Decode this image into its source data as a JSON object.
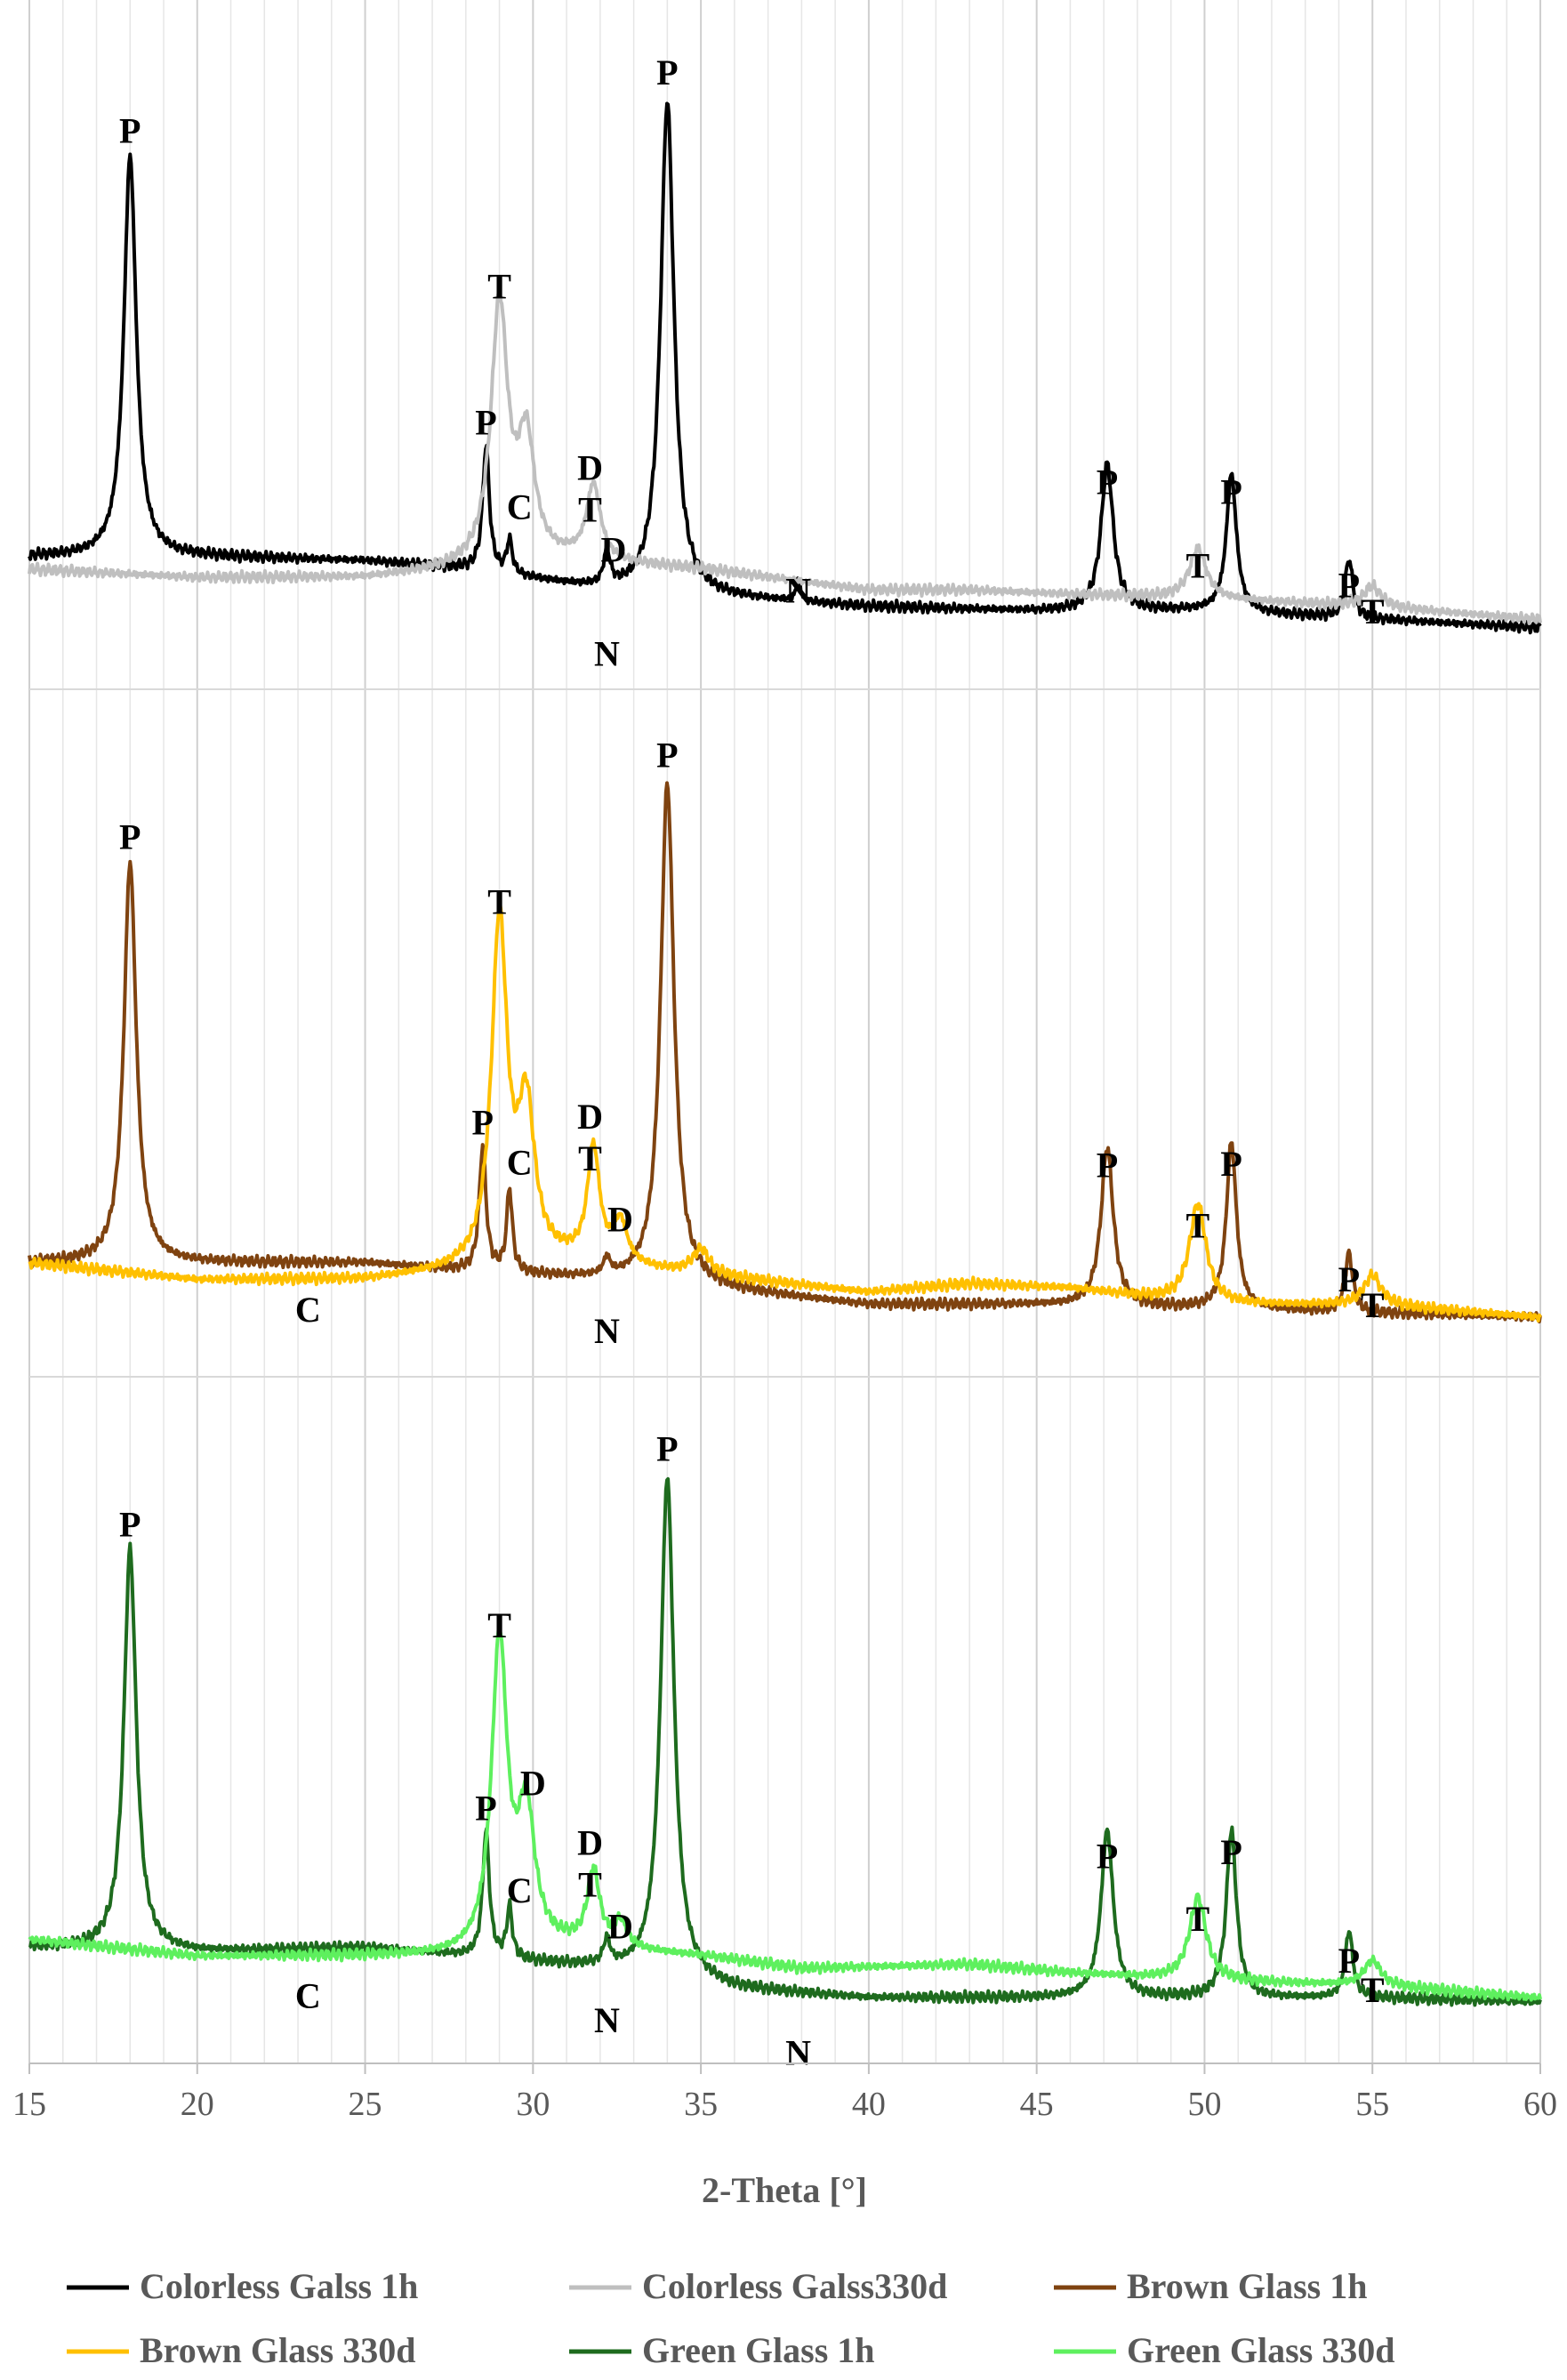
{
  "chart_data": {
    "type": "line",
    "title": "",
    "xlabel": "2-Theta [°]",
    "ylabel": "",
    "xlim": [
      15,
      60
    ],
    "x_ticks": [
      15,
      20,
      25,
      30,
      35,
      40,
      45,
      50,
      55,
      60
    ],
    "grid": "vertical",
    "legend": "bottom",
    "panels": [
      {
        "name": "colorless",
        "series": [
          {
            "name": "Colorless Galss 1h",
            "color": "#000000",
            "baseline": [
              [
                15,
                0.03
              ],
              [
                20,
                0.03
              ],
              [
                25,
                0.02
              ],
              [
                28,
                0.0
              ],
              [
                32,
                -0.05
              ],
              [
                36,
                -0.07
              ],
              [
                40,
                -0.09
              ],
              [
                45,
                -0.1
              ],
              [
                50,
                -0.1
              ],
              [
                55,
                -0.12
              ],
              [
                60,
                -0.14
              ]
            ],
            "peaks": [
              {
                "x": 18.0,
                "h": 0.96,
                "w": 0.22
              },
              {
                "x": 28.6,
                "h": 0.3,
                "w": 0.12
              },
              {
                "x": 29.3,
                "h": 0.08,
                "w": 0.1
              },
              {
                "x": 32.2,
                "h": 0.08,
                "w": 0.12
              },
              {
                "x": 34.0,
                "h": 1.18,
                "w": 0.24
              },
              {
                "x": 37.9,
                "h": 0.05,
                "w": 0.08
              },
              {
                "x": 47.1,
                "h": 0.35,
                "w": 0.22
              },
              {
                "x": 50.8,
                "h": 0.33,
                "w": 0.18
              },
              {
                "x": 54.3,
                "h": 0.14,
                "w": 0.14
              }
            ]
          },
          {
            "name": "Colorless Galss330d",
            "color": "#bfbfbf",
            "baseline": [
              [
                15,
                0.0
              ],
              [
                20,
                -0.02
              ],
              [
                25,
                -0.02
              ],
              [
                28,
                0.0
              ],
              [
                31,
                0.02
              ],
              [
                35,
                0.0
              ],
              [
                40,
                -0.05
              ],
              [
                43,
                -0.05
              ],
              [
                46,
                -0.06
              ],
              [
                50,
                -0.07
              ],
              [
                55,
                -0.09
              ],
              [
                60,
                -0.12
              ]
            ],
            "peaks": [
              {
                "x": 29.0,
                "h": 0.62,
                "w": 0.3
              },
              {
                "x": 29.8,
                "h": 0.28,
                "w": 0.3
              },
              {
                "x": 31.8,
                "h": 0.18,
                "w": 0.25
              },
              {
                "x": 49.8,
                "h": 0.12,
                "w": 0.3
              },
              {
                "x": 55.0,
                "h": 0.05,
                "w": 0.3
              }
            ]
          }
        ],
        "labels": [
          {
            "text": "P",
            "x": 18.0,
            "dy": 0.99
          },
          {
            "text": "P",
            "x": 28.6,
            "dy": 0.33
          },
          {
            "text": "T",
            "x": 29.0,
            "dy": 0.66
          },
          {
            "text": "C",
            "x": 29.6,
            "dy": 0.14
          },
          {
            "text": "D",
            "x": 31.7,
            "dy": 0.26
          },
          {
            "text": "T",
            "x": 31.7,
            "dy": 0.16
          },
          {
            "text": "D",
            "x": 32.4,
            "dy": 0.07
          },
          {
            "text": "N",
            "x": 32.2,
            "dy": -0.18
          },
          {
            "text": "P",
            "x": 34.0,
            "dy": 1.22
          },
          {
            "text": "N",
            "x": 37.9,
            "dy": 0.0
          },
          {
            "text": "P",
            "x": 47.1,
            "dy": 0.28
          },
          {
            "text": "T",
            "x": 49.8,
            "dy": 0.08
          },
          {
            "text": "P",
            "x": 50.8,
            "dy": 0.26
          },
          {
            "text": "P",
            "x": 54.3,
            "dy": 0.05
          },
          {
            "text": "T",
            "x": 55.0,
            "dy": -0.01
          }
        ]
      },
      {
        "name": "brown",
        "series": [
          {
            "name": "Brown Glass 1h",
            "color": "#7f4310",
            "baseline": [
              [
                15,
                0.0
              ],
              [
                20,
                0.0
              ],
              [
                25,
                0.0
              ],
              [
                28,
                -0.02
              ],
              [
                32,
                -0.04
              ],
              [
                35,
                -0.06
              ],
              [
                40,
                -0.1
              ],
              [
                45,
                -0.1
              ],
              [
                50,
                -0.11
              ],
              [
                55,
                -0.12
              ],
              [
                60,
                -0.13
              ]
            ],
            "peaks": [
              {
                "x": 18.0,
                "h": 0.96,
                "w": 0.22
              },
              {
                "x": 28.5,
                "h": 0.3,
                "w": 0.12
              },
              {
                "x": 29.3,
                "h": 0.2,
                "w": 0.1
              },
              {
                "x": 32.2,
                "h": 0.04,
                "w": 0.12
              },
              {
                "x": 34.0,
                "h": 1.2,
                "w": 0.24
              },
              {
                "x": 47.1,
                "h": 0.38,
                "w": 0.22
              },
              {
                "x": 50.8,
                "h": 0.4,
                "w": 0.18
              },
              {
                "x": 54.3,
                "h": 0.14,
                "w": 0.14
              }
            ]
          },
          {
            "name": "Brown Glass 330d",
            "color": "#ffc000",
            "baseline": [
              [
                15,
                0.0
              ],
              [
                20,
                -0.04
              ],
              [
                25,
                -0.04
              ],
              [
                28,
                -0.02
              ],
              [
                31,
                0.0
              ],
              [
                35,
                -0.03
              ],
              [
                40,
                -0.07
              ],
              [
                43,
                -0.05
              ],
              [
                46,
                -0.06
              ],
              [
                50,
                -0.1
              ],
              [
                55,
                -0.1
              ],
              [
                60,
                -0.13
              ]
            ],
            "peaks": [
              {
                "x": 29.0,
                "h": 0.82,
                "w": 0.28
              },
              {
                "x": 29.8,
                "h": 0.36,
                "w": 0.3
              },
              {
                "x": 31.8,
                "h": 0.27,
                "w": 0.22
              },
              {
                "x": 32.6,
                "h": 0.1,
                "w": 0.25
              },
              {
                "x": 35.0,
                "h": 0.06,
                "w": 0.3
              },
              {
                "x": 49.8,
                "h": 0.24,
                "w": 0.3
              },
              {
                "x": 55.0,
                "h": 0.07,
                "w": 0.3
              }
            ]
          }
        ],
        "labels": [
          {
            "text": "P",
            "x": 18.0,
            "dy": 0.99
          },
          {
            "text": "C",
            "x": 23.3,
            "dy": -0.14
          },
          {
            "text": "P",
            "x": 28.5,
            "dy": 0.33
          },
          {
            "text": "T",
            "x": 29.0,
            "dy": 0.86
          },
          {
            "text": "C",
            "x": 29.6,
            "dy": 0.24
          },
          {
            "text": "D",
            "x": 31.7,
            "dy": 0.36
          },
          {
            "text": "T",
            "x": 31.7,
            "dy": 0.26
          },
          {
            "text": "D",
            "x": 32.6,
            "dy": 0.12
          },
          {
            "text": "N",
            "x": 32.2,
            "dy": -0.15
          },
          {
            "text": "P",
            "x": 34.0,
            "dy": 1.24
          },
          {
            "text": "P",
            "x": 47.1,
            "dy": 0.31
          },
          {
            "text": "T",
            "x": 49.8,
            "dy": 0.17
          },
          {
            "text": "P",
            "x": 50.8,
            "dy": 0.32
          },
          {
            "text": "P",
            "x": 54.3,
            "dy": 0.05
          },
          {
            "text": "T",
            "x": 55.0,
            "dy": -0.01
          }
        ]
      },
      {
        "name": "green",
        "series": [
          {
            "name": "Green Glass 1h",
            "color": "#1e6b1e",
            "baseline": [
              [
                15,
                0.0
              ],
              [
                20,
                -0.01
              ],
              [
                25,
                0.0
              ],
              [
                28,
                -0.02
              ],
              [
                32,
                -0.05
              ],
              [
                36,
                -0.1
              ],
              [
                40,
                -0.12
              ],
              [
                45,
                -0.12
              ],
              [
                50,
                -0.12
              ],
              [
                55,
                -0.12
              ],
              [
                60,
                -0.13
              ]
            ],
            "peaks": [
              {
                "x": 18.0,
                "h": 0.96,
                "w": 0.22
              },
              {
                "x": 28.6,
                "h": 0.3,
                "w": 0.12
              },
              {
                "x": 29.3,
                "h": 0.12,
                "w": 0.1
              },
              {
                "x": 32.2,
                "h": 0.06,
                "w": 0.12
              },
              {
                "x": 34.0,
                "h": 1.2,
                "w": 0.24
              },
              {
                "x": 47.1,
                "h": 0.4,
                "w": 0.22
              },
              {
                "x": 50.8,
                "h": 0.4,
                "w": 0.18
              },
              {
                "x": 54.3,
                "h": 0.16,
                "w": 0.14
              }
            ]
          },
          {
            "name": "Green Glass 330d",
            "color": "#5ef05e",
            "baseline": [
              [
                15,
                0.02
              ],
              [
                20,
                -0.02
              ],
              [
                25,
                -0.02
              ],
              [
                28,
                -0.02
              ],
              [
                31,
                0.0
              ],
              [
                35,
                -0.02
              ],
              [
                38,
                -0.05
              ],
              [
                43,
                -0.04
              ],
              [
                46,
                -0.06
              ],
              [
                50,
                -0.08
              ],
              [
                55,
                -0.09
              ],
              [
                60,
                -0.12
              ]
            ],
            "peaks": [
              {
                "x": 29.0,
                "h": 0.74,
                "w": 0.28
              },
              {
                "x": 29.8,
                "h": 0.32,
                "w": 0.3
              },
              {
                "x": 31.8,
                "h": 0.18,
                "w": 0.22
              },
              {
                "x": 32.6,
                "h": 0.06,
                "w": 0.25
              },
              {
                "x": 49.8,
                "h": 0.2,
                "w": 0.3
              },
              {
                "x": 55.0,
                "h": 0.06,
                "w": 0.3
              }
            ]
          }
        ],
        "labels": [
          {
            "text": "P",
            "x": 18.0,
            "dy": 0.99
          },
          {
            "text": "C",
            "x": 23.3,
            "dy": -0.14
          },
          {
            "text": "P",
            "x": 28.6,
            "dy": 0.33
          },
          {
            "text": "T",
            "x": 29.0,
            "dy": 0.77
          },
          {
            "text": "C",
            "x": 29.6,
            "dy": 0.14
          },
          {
            "text": "D",
            "x": 30.0,
            "dy": 0.4
          },
          {
            "text": "D",
            "x": 31.7,
            "dy": 0.27
          },
          {
            "text": "T",
            "x": 31.7,
            "dy": 0.17
          },
          {
            "text": "D",
            "x": 32.6,
            "dy": 0.08
          },
          {
            "text": "N",
            "x": 32.2,
            "dy": -0.15
          },
          {
            "text": "P",
            "x": 34.0,
            "dy": 1.24
          },
          {
            "text": "N",
            "x": 37.9,
            "dy": -0.17
          },
          {
            "text": "P",
            "x": 47.1,
            "dy": 0.31
          },
          {
            "text": "T",
            "x": 49.8,
            "dy": 0.16
          },
          {
            "text": "P",
            "x": 50.8,
            "dy": 0.32
          },
          {
            "text": "P",
            "x": 54.3,
            "dy": 0.06
          },
          {
            "text": "T",
            "x": 55.0,
            "dy": -0.01
          }
        ]
      }
    ],
    "legend_entries": [
      {
        "label": "Colorless Galss 1h",
        "color": "#000000"
      },
      {
        "label": "Colorless Galss330d",
        "color": "#bfbfbf"
      },
      {
        "label": "Brown Glass 1h",
        "color": "#7f4310"
      },
      {
        "label": "Brown Glass 330d",
        "color": "#ffc000"
      },
      {
        "label": "Green Glass 1h",
        "color": "#1e6b1e"
      },
      {
        "label": "Green Glass 330d",
        "color": "#5ef05e"
      }
    ]
  }
}
